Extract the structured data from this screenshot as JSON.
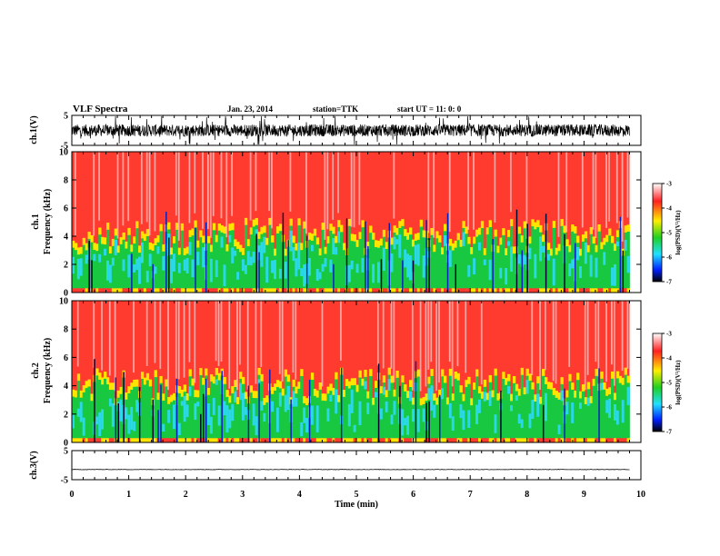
{
  "header": {
    "title": "VLF Spectra",
    "date": "Jan. 23, 2014",
    "station": "station=TTK",
    "start": "start UT =  11: 0: 0"
  },
  "colors": {
    "spec_high": "#ff3b30",
    "spec_mid": "#ffe400",
    "spec_low_green": "#18c840",
    "spec_low_cyan": "#2ad8e8",
    "spec_low_blue": "#0020c0",
    "spec_gap": "#000030",
    "signal": "#000000"
  },
  "chart_data": [
    {
      "type": "line",
      "panel": "ch1-waveform",
      "ylabel": "ch.1(V)",
      "xlim": [
        0,
        10
      ],
      "ylim": [
        -5,
        5
      ],
      "yticks": [
        "5",
        "-5"
      ],
      "x_data_end": 9.8,
      "mean": 0.0,
      "amplitude_typical": 2.0,
      "amplitude_peak": 5.0
    },
    {
      "type": "heatmap",
      "panel": "ch1-spectrogram",
      "ylabel": "ch.1\nFrequency (kHz)",
      "xlim": [
        0,
        10
      ],
      "ylim": [
        0,
        10
      ],
      "yticks": [
        "0",
        "2",
        "4",
        "6",
        "8",
        "10"
      ],
      "x_data_end": 9.8,
      "colorbar": {
        "label": "log(PSD)(V²/Hz)",
        "range": [
          -7,
          -3
        ],
        "ticks": [
          "-3",
          "-4",
          "-5",
          "-6",
          "-7"
        ]
      },
      "description_values": {
        "low_band_kHz": [
          0,
          4
        ],
        "high_band_kHz": [
          4,
          10
        ],
        "high_band_level": -3.5,
        "low_band_level": -5.3
      }
    },
    {
      "type": "heatmap",
      "panel": "ch2-spectrogram",
      "ylabel": "ch.2\nFrequency (kHz)",
      "xlim": [
        0,
        10
      ],
      "ylim": [
        0,
        10
      ],
      "yticks": [
        "0",
        "2",
        "4",
        "6",
        "8",
        "10"
      ],
      "x_data_end": 9.8,
      "colorbar": {
        "label": "log(PSD)(V²/Hz)",
        "range": [
          -7,
          -3
        ],
        "ticks": [
          "-3",
          "-4",
          "-5",
          "-6",
          "-7"
        ]
      },
      "description_values": {
        "low_band_kHz": [
          0,
          4
        ],
        "high_band_kHz": [
          4,
          10
        ],
        "high_band_level": -3.6,
        "low_band_level": -5.4
      }
    },
    {
      "type": "line",
      "panel": "ch3-waveform",
      "ylabel": "ch.3(V)",
      "xlim": [
        0,
        10
      ],
      "ylim": [
        -5,
        5
      ],
      "yticks": [
        "5",
        "-5"
      ],
      "x_data_end": 9.8,
      "mean": -1.5,
      "amplitude_typical": 0.15
    }
  ],
  "xaxis": {
    "label": "Time (min)",
    "ticks": [
      "0",
      "1",
      "2",
      "3",
      "4",
      "5",
      "6",
      "7",
      "8",
      "9",
      "10"
    ]
  },
  "ch1_ylabel_top": "ch.1",
  "ch1_ylabel_bottom": "Frequency (kHz)",
  "ch2_ylabel_top": "ch.2",
  "ch2_ylabel_bottom": "Frequency (kHz)",
  "colorbar_label": "log(PSD)(V²/Hz)"
}
